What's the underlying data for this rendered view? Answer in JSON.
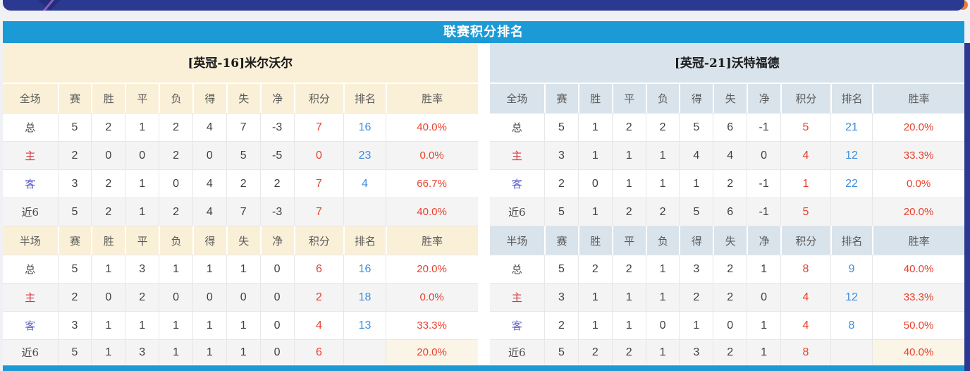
{
  "section": {
    "title": "联赛积分排名"
  },
  "table": {
    "full_label": "全场",
    "half_label": "半场",
    "stat_columns": [
      "赛",
      "胜",
      "平",
      "负",
      "得",
      "失",
      "净",
      "积分",
      "排名",
      "胜率"
    ]
  },
  "colors": {
    "accent_cyan": "#1B9AD6",
    "banner_navy": "#2B3990",
    "left_header_bg": "#FAF0D8",
    "right_header_bg": "#D9E3EB",
    "points_red": "#E8402C",
    "rank_blue": "#3E8CDC",
    "home_label_red": "#D9383A",
    "away_label_blue": "#6263CE"
  },
  "teams": [
    {
      "name": "[英冠-16]米尔沃尔",
      "full": [
        {
          "label": "总",
          "type": "total",
          "stats": [
            "5",
            "2",
            "1",
            "2",
            "4",
            "7",
            "-3"
          ],
          "points": "7",
          "rank": "16",
          "rate": "40.0%"
        },
        {
          "label": "主",
          "type": "home",
          "stats": [
            "2",
            "0",
            "0",
            "2",
            "0",
            "5",
            "-5"
          ],
          "points": "0",
          "rank": "23",
          "rate": "0.0%"
        },
        {
          "label": "客",
          "type": "away",
          "stats": [
            "3",
            "2",
            "1",
            "0",
            "4",
            "2",
            "2"
          ],
          "points": "7",
          "rank": "4",
          "rate": "66.7%"
        },
        {
          "label": "近6",
          "type": "near",
          "stats": [
            "5",
            "2",
            "1",
            "2",
            "4",
            "7",
            "-3"
          ],
          "points": "7",
          "rank": "",
          "rate": "40.0%"
        }
      ],
      "half": [
        {
          "label": "总",
          "type": "total",
          "stats": [
            "5",
            "1",
            "3",
            "1",
            "1",
            "1",
            "0"
          ],
          "points": "6",
          "rank": "16",
          "rate": "20.0%"
        },
        {
          "label": "主",
          "type": "home",
          "stats": [
            "2",
            "0",
            "2",
            "0",
            "0",
            "0",
            "0"
          ],
          "points": "2",
          "rank": "18",
          "rate": "0.0%"
        },
        {
          "label": "客",
          "type": "away",
          "stats": [
            "3",
            "1",
            "1",
            "1",
            "1",
            "1",
            "0"
          ],
          "points": "4",
          "rank": "13",
          "rate": "33.3%"
        },
        {
          "label": "近6",
          "type": "near",
          "stats": [
            "5",
            "1",
            "3",
            "1",
            "1",
            "1",
            "0"
          ],
          "points": "6",
          "rank": "",
          "rate": "20.0%"
        }
      ]
    },
    {
      "name": "[英冠-21]沃特福德",
      "full": [
        {
          "label": "总",
          "type": "total",
          "stats": [
            "5",
            "1",
            "2",
            "2",
            "5",
            "6",
            "-1"
          ],
          "points": "5",
          "rank": "21",
          "rate": "20.0%"
        },
        {
          "label": "主",
          "type": "home",
          "stats": [
            "3",
            "1",
            "1",
            "1",
            "4",
            "4",
            "0"
          ],
          "points": "4",
          "rank": "12",
          "rate": "33.3%"
        },
        {
          "label": "客",
          "type": "away",
          "stats": [
            "2",
            "0",
            "1",
            "1",
            "1",
            "2",
            "-1"
          ],
          "points": "1",
          "rank": "22",
          "rate": "0.0%"
        },
        {
          "label": "近6",
          "type": "near",
          "stats": [
            "5",
            "1",
            "2",
            "2",
            "5",
            "6",
            "-1"
          ],
          "points": "5",
          "rank": "",
          "rate": "20.0%"
        }
      ],
      "half": [
        {
          "label": "总",
          "type": "total",
          "stats": [
            "5",
            "2",
            "2",
            "1",
            "3",
            "2",
            "1"
          ],
          "points": "8",
          "rank": "9",
          "rate": "40.0%"
        },
        {
          "label": "主",
          "type": "home",
          "stats": [
            "3",
            "1",
            "1",
            "1",
            "2",
            "2",
            "0"
          ],
          "points": "4",
          "rank": "12",
          "rate": "33.3%"
        },
        {
          "label": "客",
          "type": "away",
          "stats": [
            "2",
            "1",
            "1",
            "0",
            "1",
            "0",
            "1"
          ],
          "points": "4",
          "rank": "8",
          "rate": "50.0%"
        },
        {
          "label": "近6",
          "type": "near",
          "stats": [
            "5",
            "2",
            "2",
            "1",
            "3",
            "2",
            "1"
          ],
          "points": "8",
          "rank": "",
          "rate": "40.0%"
        }
      ]
    }
  ]
}
